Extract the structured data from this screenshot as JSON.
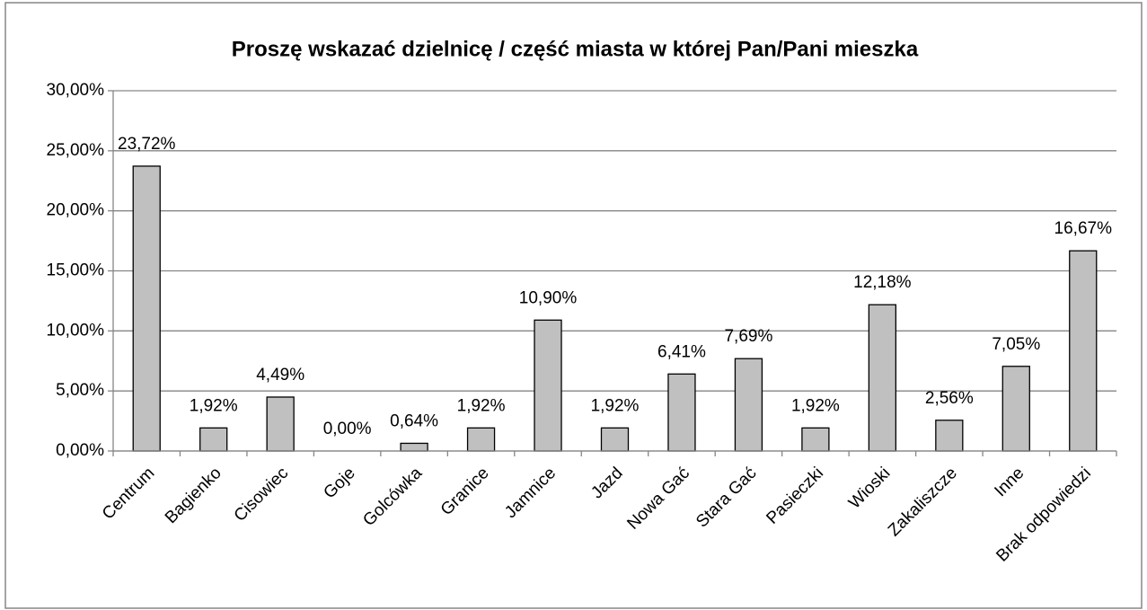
{
  "chart_data": {
    "type": "bar",
    "title": "Proszę wskazać dzielnicę / część miasta w której Pan/Pani mieszka",
    "categories": [
      "Centrum",
      "Bagienko",
      "Cisowiec",
      "Goje",
      "Golcówka",
      "Granice",
      "Jamnice",
      "Jazd",
      "Nowa Gać",
      "Stara Gać",
      "Pasieczki",
      "Wioski",
      "Zakaliszcze",
      "Inne",
      "Brak odpowiedzi"
    ],
    "values": [
      23.72,
      1.92,
      4.49,
      0,
      0.64,
      1.92,
      10.9,
      1.92,
      6.41,
      7.69,
      1.92,
      12.18,
      2.56,
      7.05,
      16.67
    ],
    "value_labels": [
      "23,72%",
      "1,92%",
      "4,49%",
      "0,00%",
      "0,64%",
      "1,92%",
      "10,90%",
      "1,92%",
      "6,41%",
      "7,69%",
      "1,92%",
      "12,18%",
      "2,56%",
      "7,05%",
      "16,67%"
    ],
    "color": "#c0c0c0",
    "ylim": [
      0,
      30
    ],
    "yticks": [
      {
        "value": 0,
        "label": "0,00%"
      },
      {
        "value": 5,
        "label": "5,00%"
      },
      {
        "value": 10,
        "label": "10,00%"
      },
      {
        "value": 15,
        "label": "15,00%"
      },
      {
        "value": 20,
        "label": "20,00%"
      },
      {
        "value": 25,
        "label": "25,00%"
      },
      {
        "value": 30,
        "label": "30,00%"
      }
    ],
    "grid": true
  }
}
